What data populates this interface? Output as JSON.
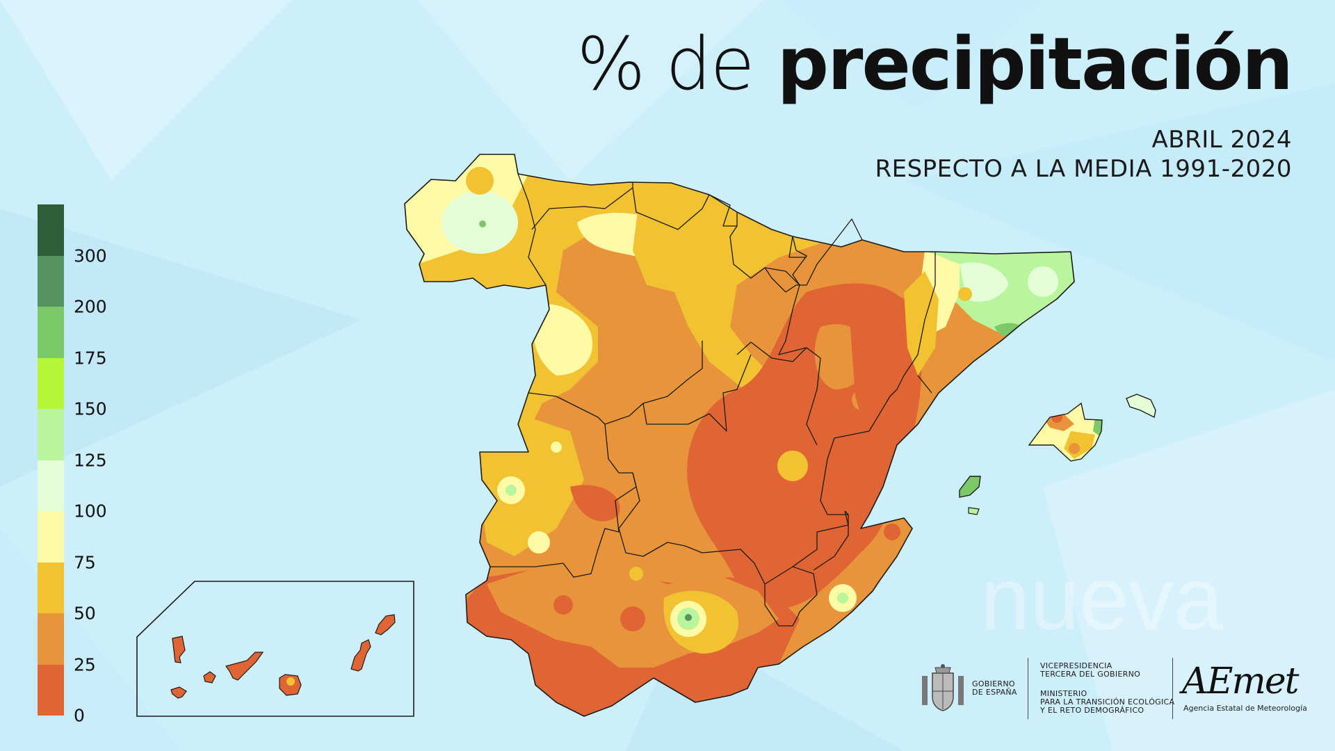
{
  "title": {
    "prefix": "% de",
    "main": "precipitación"
  },
  "subtitle": {
    "line1": "ABRIL 2024",
    "line2": "RESPECTO A LA MEDIA 1991-2020"
  },
  "legend": {
    "bins": [
      {
        "from": 0,
        "to": 25,
        "color": "#e06535"
      },
      {
        "from": 25,
        "to": 50,
        "color": "#e8943a"
      },
      {
        "from": 50,
        "to": 75,
        "color": "#f1c232"
      },
      {
        "from": 75,
        "to": 100,
        "color": "#fffaa5"
      },
      {
        "from": 100,
        "to": 125,
        "color": "#e4ffd8"
      },
      {
        "from": 125,
        "to": 150,
        "color": "#b8f59c"
      },
      {
        "from": 150,
        "to": 175,
        "color": "#b6f537"
      },
      {
        "from": 175,
        "to": 200,
        "color": "#7cc96a"
      },
      {
        "from": 200,
        "to": 300,
        "color": "#559461"
      },
      {
        "from": 300,
        "to": null,
        "color": "#2d5e35"
      }
    ],
    "labels": [
      "0",
      "25",
      "50",
      "75",
      "100",
      "125",
      "150",
      "175",
      "200",
      "300"
    ]
  },
  "map": {
    "region": "Spain",
    "inset": "Canary Islands"
  },
  "footer": {
    "gobierno": [
      "GOBIERNO",
      "DE ESPAÑA"
    ],
    "vicepresidencia": [
      "VICEPRESIDENCIA",
      "TERCERA DEL GOBIERNO"
    ],
    "ministerio": [
      "MINISTERIO",
      "PARA LA TRANSICIÓN ECOLÓGICA",
      "Y EL RETO DEMOGRÁFICO"
    ],
    "aemet_logo": "AEmet",
    "aemet_name": "Agencia Estatal de Meteorología"
  },
  "icons": {
    "coat_of_arms": "coat-of-arms-icon"
  }
}
